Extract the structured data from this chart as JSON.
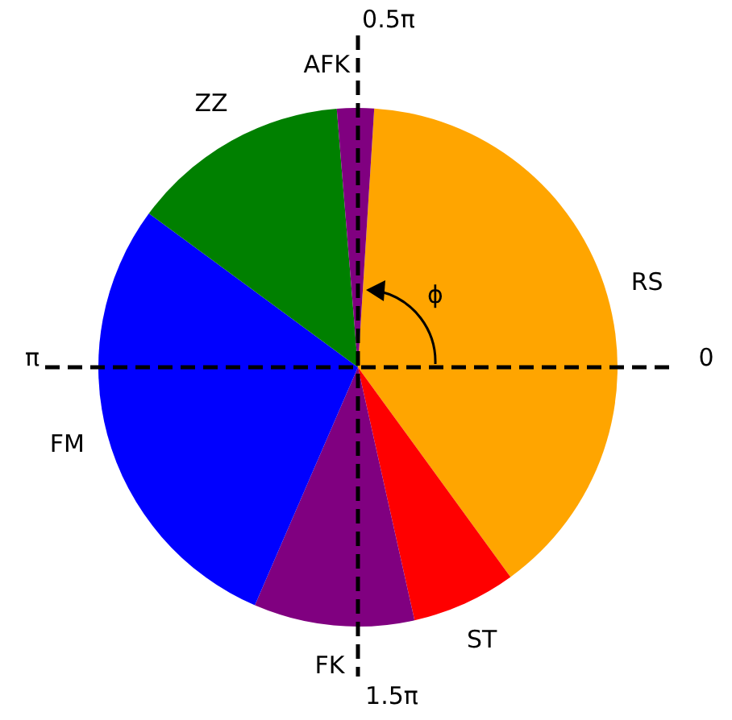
{
  "chart_data": {
    "type": "pie",
    "categories": [
      "RS",
      "ST",
      "FK",
      "FM",
      "ZZ",
      "AFK"
    ],
    "values": [
      39,
      6.5,
      10,
      28.6,
      13.6,
      2.3
    ],
    "colors": [
      "#ffa500",
      "#ff0000",
      "#800080",
      "#0000ff",
      "#008000",
      "#800080"
    ],
    "annotations": [
      "0",
      "0.5π",
      "π",
      "1.5π",
      "ϕ"
    ],
    "legend": false
  }
}
